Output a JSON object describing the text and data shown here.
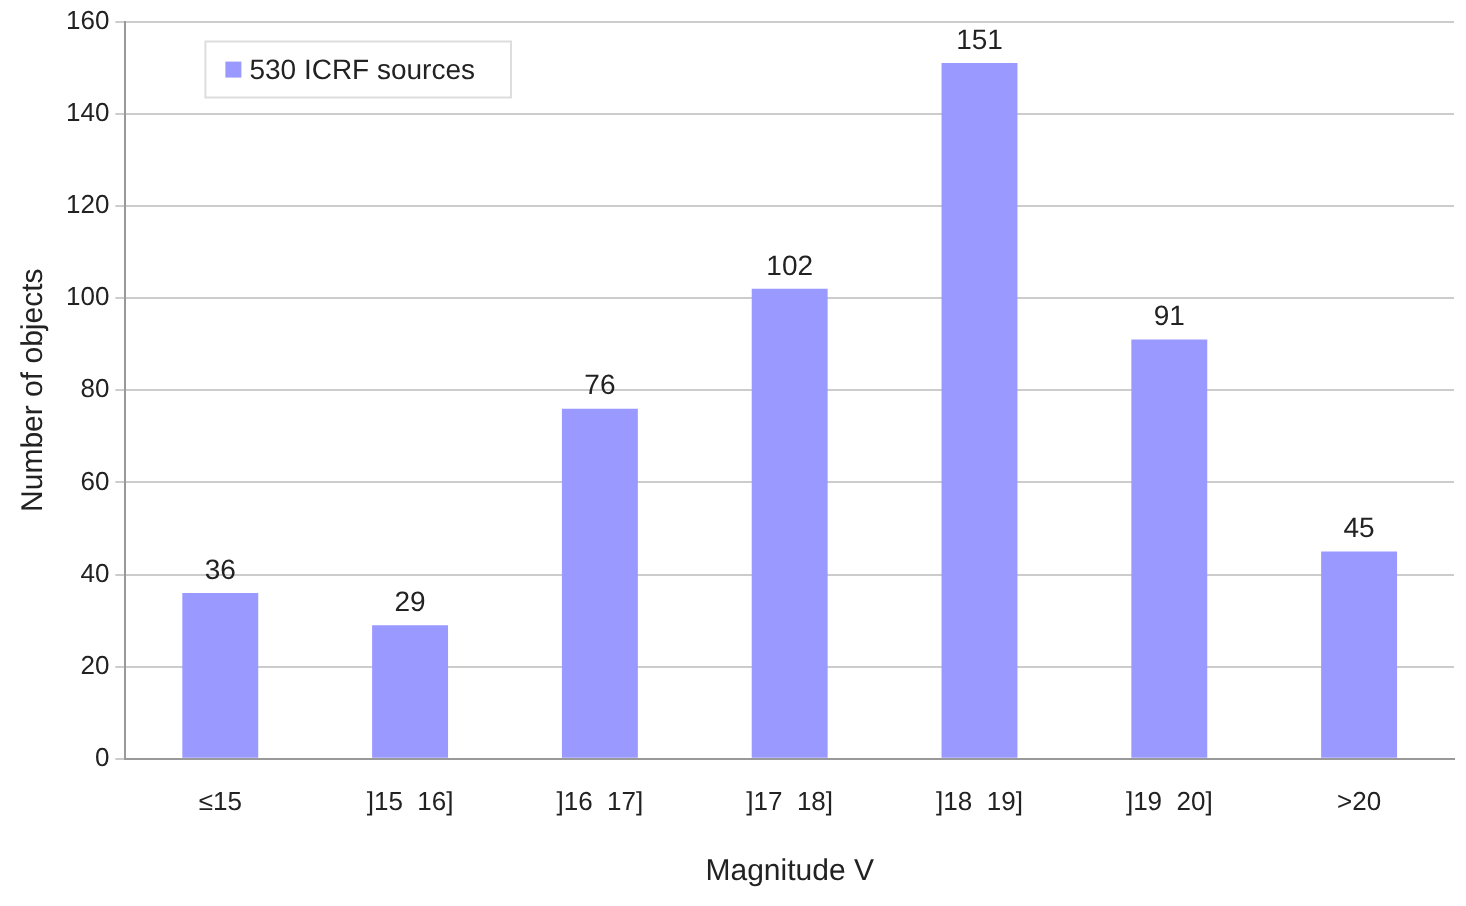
{
  "chart_data": {
    "type": "bar",
    "xlabel": "Magnitude V",
    "ylabel": "Number of objects",
    "categories": [
      "≤15",
      "]15  16]",
      "]16  17]",
      "]17  18]",
      "]18  19]",
      "]19  20]",
      ">20"
    ],
    "series": [
      {
        "name": "530 ICRF sources",
        "color": "#9999ff",
        "values": [
          36,
          29,
          76,
          102,
          151,
          91,
          45
        ]
      }
    ],
    "ylim": [
      0,
      160
    ],
    "yticks": [
      0,
      20,
      40,
      60,
      80,
      100,
      120,
      140,
      160
    ],
    "grid": "y",
    "legend": "top left",
    "data_labels": true
  }
}
